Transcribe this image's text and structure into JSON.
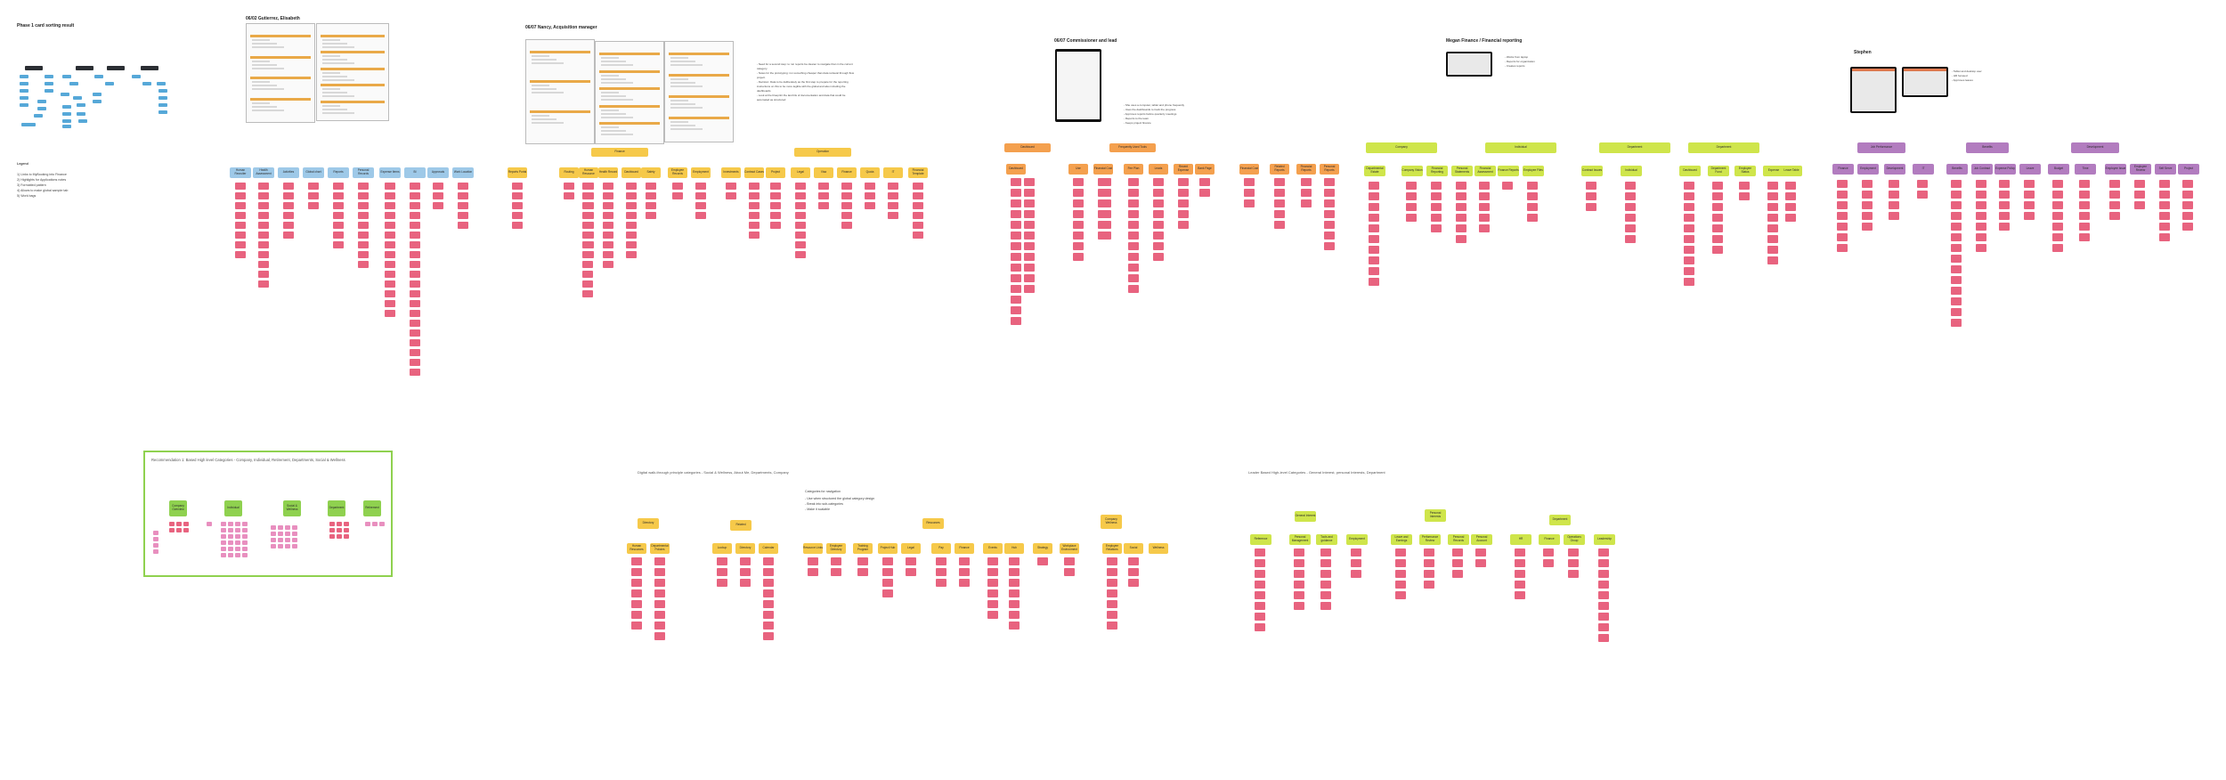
{
  "phase": {
    "title": "Phase 1 card sorting result",
    "legend_heading": "Legend",
    "legend_lines": [
      "1) Links to MyBooking into Finance",
      "2) Highlights for Applications notes",
      "3) Formatted pattern",
      "4) Allows to make global sample tab",
      "5) Work bags"
    ]
  },
  "sections": [
    {
      "title": "06/02 Gutierrez, Elisabeth",
      "color": "#9ec9e8"
    },
    {
      "title": "06/07 Nancy, Acquisition manager",
      "color": "#f6c94a"
    },
    {
      "title": "06/07 Commissioner and lead",
      "color": "#f4a04e"
    },
    {
      "title": "Megan Finance / Financial reporting",
      "color": "#cfe54b"
    },
    {
      "title": "Stephen",
      "color": "#b27cbf"
    }
  ],
  "headers": {
    "elisabeth": [
      "Human Recruiter",
      "Health Assessment",
      "Activities",
      "Global chart",
      "Reports",
      "Personal Records",
      "Expense Items",
      "BI",
      "Approvals",
      "Work Location"
    ],
    "nancy_top": [
      "Finance",
      "Operation"
    ],
    "nancy": [
      "Reports Portal",
      "Routing",
      "Human Resource",
      "Health Record",
      "Dashboard",
      "Safety",
      "Employee Records",
      "Employment",
      "Investments",
      "Contract Cases",
      "Project",
      "Legal",
      "Visa",
      "Finance",
      "Quota",
      "IT",
      "Financial Template"
    ],
    "commissioner_top": [
      "Dashboard",
      "Frequently Used Tools"
    ],
    "commissioner": [
      "Dashboard",
      "Use",
      "Financial Cost",
      "Fee Plan",
      "Leads",
      "Recent Expense",
      "Bank Page",
      "Financial Cost",
      "Related Reports",
      "Financial Reports",
      "Personal Reports"
    ],
    "megan_top": [
      "Company",
      "Individual",
      "Department",
      "Department"
    ],
    "megan": [
      "Departmental Estate",
      "Company Vision",
      "Financial Reporting",
      "Personal Statements",
      "Financial Assessment",
      "Finance Reports",
      "Employee Files",
      "Contract Issues",
      "Individual",
      "Dashboard",
      "Department Fund",
      "Employee Status",
      "Expense",
      "Leave Table"
    ],
    "stephen_top": [
      "Job Performance",
      "Benefits",
      "Development"
    ],
    "stephen": [
      "Finance",
      "Employment",
      "Development",
      "IT",
      "Benefits",
      "Job Contract",
      "Expense Policy",
      "Leave",
      "Budget",
      "Time",
      "Employee Issue",
      "Employee Review",
      "Self Serve",
      "Project"
    ]
  },
  "notes": {
    "nancy": [
      "- Need for a second step: to run reports be cleaner to navigate than in the current",
      "  category.",
      "- Notes for the prototyping: run something cheaper than data retrieval through flow",
      "  project.",
      "- Decision: Data to be deliberately as the first step to prepare for the reporting",
      "  instructions on this to be more legible with the global and also including the",
      "  dashboards",
      "- Look at the blueprint the last bits of documentation and data that could be",
      "  automated as structured"
    ],
    "commissioner": [
      "- She uses a computer, tablet and phone frequently",
      "- Uses the dashboards to track the progress",
      "- Approves reports before quarterly meetings",
      "- Reports to the team",
      "- Keeps project finance"
    ],
    "megan": [
      "- Works from laptop",
      "- Reports for organization",
      "- Creates reports"
    ],
    "stephen": [
      "- Tablet and desktop user",
      "- HR focused",
      "- Approves leaves"
    ]
  },
  "bottom": {
    "reco_title": "Recommendation 1: Based High level Categories - Company, Individual, Retirement, Departments, Social & Wellness",
    "reco_headers": [
      "Company Overview",
      "Individual",
      "Social & Wellness",
      "Department",
      "Retirement"
    ],
    "digital_title": "Digital walk-through principle categories - Social & Wellness, About Me, Departments, Company",
    "digital_sub": [
      "Categories for navigation",
      "- Use when structured the global category design",
      "- Break into sub-categories",
      "- Make it scalable"
    ],
    "digital_top": [
      "Directory",
      "Related",
      "Resources",
      "Company Wellness"
    ],
    "digital": [
      "Human Resources",
      "Departmental Policies",
      "Lookup",
      "Directory",
      "Calendar",
      "Resource Links",
      "Employee Directory",
      "Training Program",
      "Project Hub",
      "Legal",
      "Pay",
      "Finance",
      "Events",
      "Hub",
      "Strategy",
      "Workplace Environment",
      "Employee Relations",
      "Social",
      "Wellness"
    ],
    "leader_title": "Leader Based High-level Categories - General Interest, personal Interests, Department",
    "leader_top": [
      "General Interest",
      "Personal Interests",
      "Department"
    ],
    "leader": [
      "Reference",
      "Personal Management",
      "Tools and guidance",
      "Employment",
      "Leave and Earnings",
      "Performance Review",
      "Personal Records",
      "Personal Account",
      "HR",
      "Finance",
      "Operations Group",
      "Leadership"
    ]
  }
}
